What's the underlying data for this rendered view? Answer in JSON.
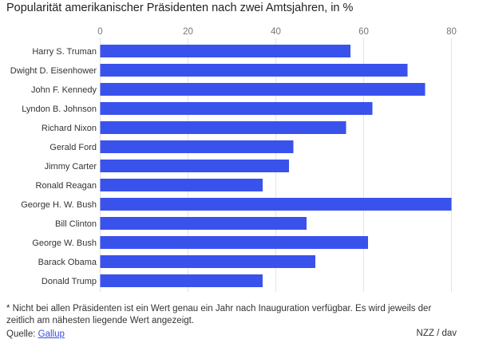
{
  "chart_data": {
    "type": "bar",
    "orientation": "horizontal",
    "title": "Popularität amerikanischer Präsidenten nach zwei Amtsjahren, in %",
    "categories": [
      "Harry S. Truman",
      "Dwight D. Eisenhower",
      "John F. Kennedy",
      "Lyndon B. Johnson",
      "Richard Nixon",
      "Gerald Ford",
      "Jimmy Carter",
      "Ronald Reagan",
      "George H. W. Bush",
      "Bill Clinton",
      "George W. Bush",
      "Barack Obama",
      "Donald Trump"
    ],
    "values": [
      57,
      70,
      74,
      62,
      56,
      44,
      43,
      37,
      80,
      47,
      61,
      49,
      37
    ],
    "xticks": [
      0,
      20,
      40,
      60,
      80
    ],
    "xlim": [
      0,
      80
    ],
    "xlabel": "",
    "ylabel": "",
    "grid": true,
    "bar_color": "#3a52ec"
  },
  "footer": {
    "note": "* Nicht bei allen Präsidenten ist ein Wert genau ein Jahr nach Inauguration verfügbar. Es wird jeweils der zeitlich am nähesten liegende Wert angezeigt.",
    "source_label": "Quelle: ",
    "source_link": "Gallup",
    "credit": "NZZ / dav"
  }
}
